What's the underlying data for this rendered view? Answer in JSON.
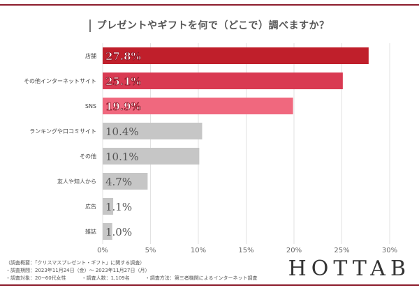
{
  "title": "プレゼントやギフトを何で（どこで）調べますか？",
  "chart_data": {
    "type": "bar",
    "orientation": "horizontal",
    "categories": [
      "店舗",
      "その他インターネットサイト",
      "SNS",
      "ランキングや口コミサイト",
      "その他",
      "友人や知人から",
      "広告",
      "雑誌"
    ],
    "values": [
      27.8,
      25.1,
      19.9,
      10.4,
      10.1,
      4.7,
      1.1,
      1.0
    ],
    "value_labels": [
      "27.8%",
      "25.1%",
      "19.9%",
      "10.4%",
      "10.1%",
      "4.7%",
      "1.1%",
      "1.0%"
    ],
    "xlim": [
      0,
      30
    ],
    "xticks": [
      "0%",
      "5%",
      "10%",
      "15%",
      "20%",
      "25%",
      "30%"
    ],
    "grid": "vertical",
    "colors": [
      "#c01f2b",
      "#d93a52",
      "#f0687e",
      "#c6c6c6",
      "#c6c6c6",
      "#c6c6c6",
      "#c6c6c6",
      "#c6c6c6"
    ]
  },
  "notes": {
    "line1": "（調査概要：「クリスマスプレゼント・ギフト」に関する調査）",
    "line2": "・調査期間：2023年11月24日（金）～ 2023年11月27日（月）",
    "target": "・調査対象：20~60代女性",
    "count": "・調査人数：1,109名",
    "method": "・調査方法：第三者機関によるインターネット調査"
  },
  "logo": "HOTTAB"
}
